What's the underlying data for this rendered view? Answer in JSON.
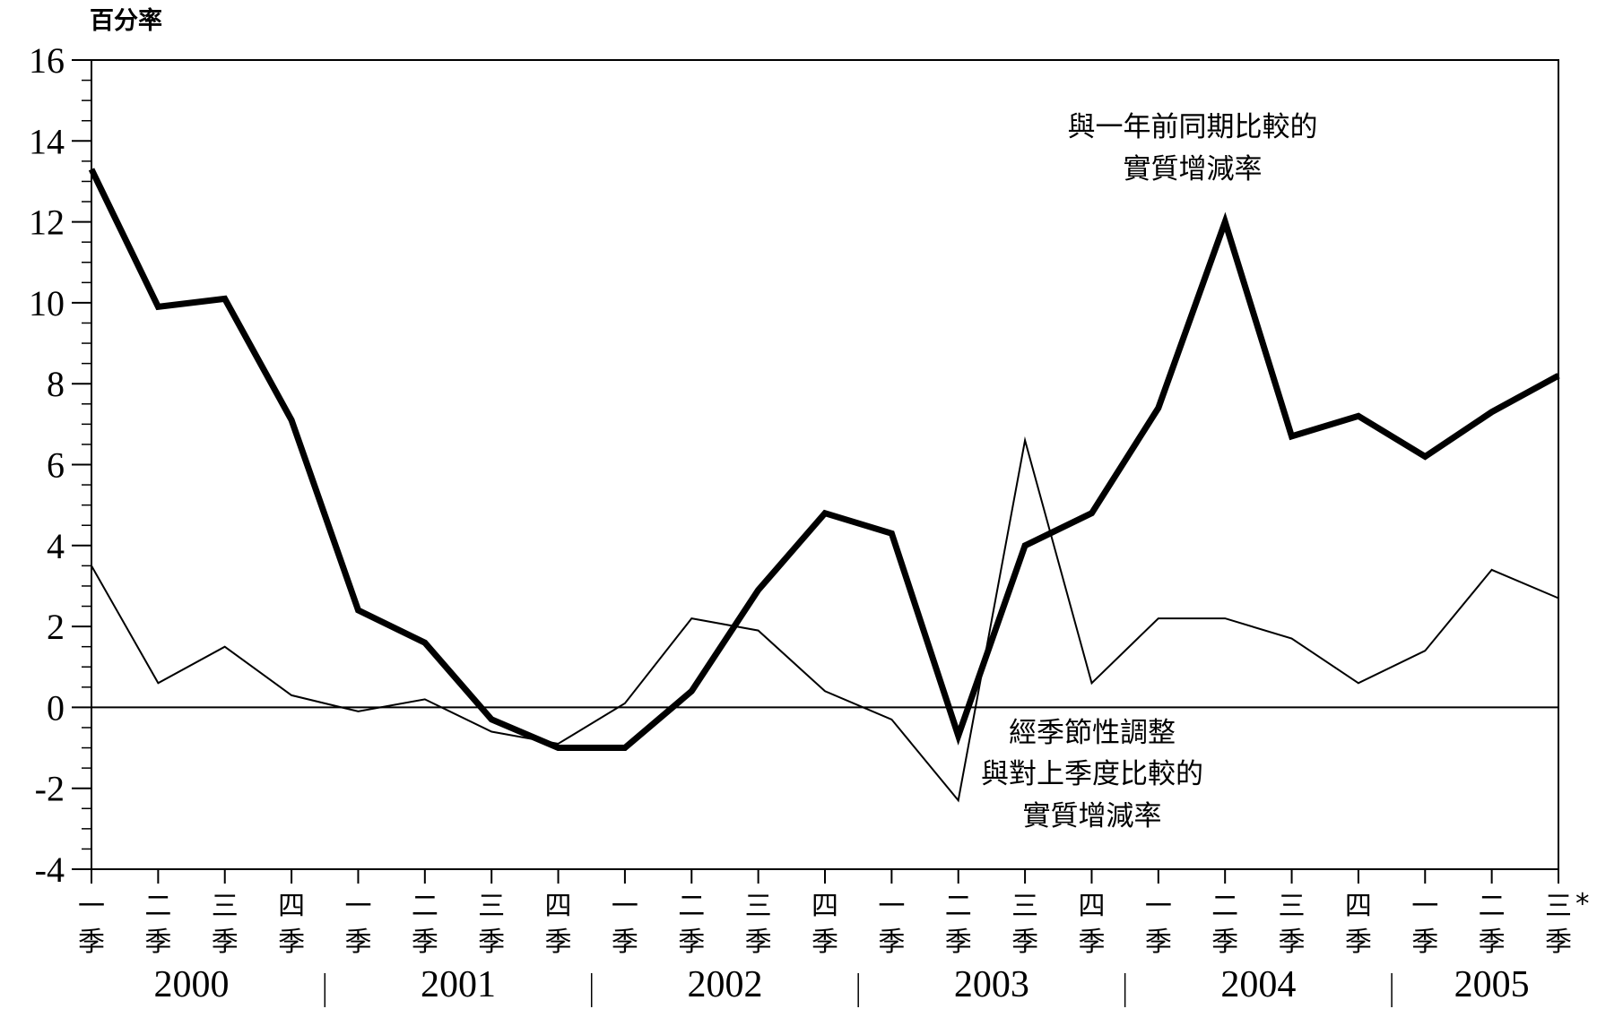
{
  "chart_data": {
    "type": "line",
    "ylabel": "百分率",
    "ylim": [
      -4,
      16
    ],
    "y_ticks": [
      "16",
      "14",
      "12",
      "10",
      "8",
      "6",
      "4",
      "2",
      "0",
      "-2",
      "-4"
    ],
    "years": [
      "2000",
      "2001",
      "2002",
      "2003",
      "2004",
      "2005"
    ],
    "quarters": [
      {
        "q": "一",
        "s": "季"
      },
      {
        "q": "二",
        "s": "季"
      },
      {
        "q": "三",
        "s": "季"
      },
      {
        "q": "四",
        "s": "季"
      },
      {
        "q": "一",
        "s": "季"
      },
      {
        "q": "二",
        "s": "季"
      },
      {
        "q": "三",
        "s": "季"
      },
      {
        "q": "四",
        "s": "季"
      },
      {
        "q": "一",
        "s": "季"
      },
      {
        "q": "二",
        "s": "季"
      },
      {
        "q": "三",
        "s": "季"
      },
      {
        "q": "四",
        "s": "季"
      },
      {
        "q": "一",
        "s": "季"
      },
      {
        "q": "二",
        "s": "季"
      },
      {
        "q": "三",
        "s": "季"
      },
      {
        "q": "四",
        "s": "季"
      },
      {
        "q": "一",
        "s": "季"
      },
      {
        "q": "二",
        "s": "季"
      },
      {
        "q": "三",
        "s": "季"
      },
      {
        "q": "四",
        "s": "季"
      },
      {
        "q": "一",
        "s": "季"
      },
      {
        "q": "二",
        "s": "季"
      },
      {
        "q": "三",
        "s": "季"
      }
    ],
    "last_marker": "*",
    "series": [
      {
        "name": "與一年前同期比較的實質增減率",
        "label_lines": [
          "與一年前同期比較的",
          "實質增減率"
        ],
        "style": "thick",
        "color": "#000000",
        "values": [
          13.3,
          9.9,
          10.1,
          7.1,
          2.4,
          1.6,
          -0.3,
          -1.0,
          -1.0,
          0.4,
          2.9,
          4.8,
          4.3,
          -0.7,
          4.0,
          4.8,
          7.4,
          12.0,
          6.7,
          7.2,
          6.2,
          7.3,
          8.2
        ]
      },
      {
        "name": "經季節性調整與對上季度比較的實質增減率",
        "label_lines": [
          "經季節性調整",
          "與對上季度比較的",
          "實質增減率"
        ],
        "style": "thin",
        "color": "#000000",
        "values": [
          3.5,
          0.6,
          1.5,
          0.3,
          -0.1,
          0.2,
          -0.6,
          -0.9,
          0.1,
          2.2,
          1.9,
          0.4,
          -0.3,
          -2.3,
          6.6,
          0.6,
          2.2,
          2.2,
          1.7,
          0.6,
          1.4,
          3.4,
          2.7
        ]
      }
    ],
    "grid": false,
    "legend": "none"
  }
}
